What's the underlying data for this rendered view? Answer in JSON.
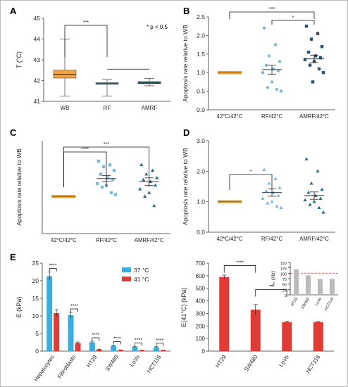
{
  "figure": {
    "panels": {
      "A": {
        "letter": "A",
        "note": "* p < 0.5"
      },
      "B": {
        "letter": "B"
      },
      "C": {
        "letter": "C"
      },
      "D": {
        "letter": "D"
      },
      "E": {
        "letter": "E"
      }
    }
  },
  "colors": {
    "orange": "#e8a030",
    "wb_fill": "#f0a448",
    "blue_light": "#80b6da",
    "blue_dark": "#2c5272",
    "teal": "#2b6b80",
    "bar_blue": "#3aaee0",
    "bar_red": "#e23a35",
    "gray_bar": "#bbbbbb",
    "ref_line": "#e05050",
    "axis": "#333333"
  },
  "chart_data": [
    {
      "panel": "A",
      "type": "box",
      "ylabel": "T (°C)",
      "ylim": [
        41,
        45
      ],
      "yticks": [
        41,
        42,
        43,
        44,
        45
      ],
      "categories": [
        "WB",
        "RF",
        "AMRF"
      ],
      "boxes": [
        {
          "name": "WB",
          "whisker_low": 41.25,
          "q1": 42.12,
          "median": 42.3,
          "q3": 42.5,
          "whisker_high": 44.0,
          "color": "#f0a448"
        },
        {
          "name": "RF",
          "whisker_low": 41.25,
          "q1": 41.82,
          "median": 41.85,
          "q3": 41.9,
          "whisker_high": 42.05,
          "color": "#7bb6d6"
        },
        {
          "name": "AMRF",
          "whisker_low": 41.75,
          "q1": 41.85,
          "median": 41.88,
          "q3": 41.95,
          "whisker_high": 42.1,
          "color": "#2b6b80"
        }
      ],
      "significance": [
        {
          "from": "WB",
          "to": "RF",
          "label": "***"
        }
      ],
      "bracket": {
        "from": "RF",
        "to": "AMRF"
      }
    },
    {
      "panel": "B",
      "type": "scatter",
      "ylabel": "Apoptosis rate relative to WB",
      "ylim": [
        0,
        2.5
      ],
      "yticks": [
        "0.0",
        "0.5",
        "1.0",
        "1.5",
        "2.0",
        "2.5"
      ],
      "categories": [
        "42°C/42°C",
        "RF/42°C",
        "AMRF/42°C"
      ],
      "groups": [
        {
          "name": "42°C/42°C",
          "mean": 1.0,
          "sem": 0.02,
          "points": [],
          "marker": "bar",
          "color": "#e8a030"
        },
        {
          "name": "RF/42°C",
          "mean": 1.08,
          "sem": 0.12,
          "points": [
            2.2,
            1.75,
            1.45,
            1.3,
            1.2,
            1.1,
            1.05,
            1.0,
            0.75,
            0.6,
            0.55,
            0.5
          ],
          "marker": "circle",
          "color": "#80b6da"
        },
        {
          "name": "AMRF/42°C",
          "mean": 1.37,
          "sem": 0.1,
          "points": [
            2.25,
            2.05,
            1.9,
            1.7,
            1.55,
            1.45,
            1.4,
            1.35,
            1.3,
            1.2,
            1.1,
            1.0,
            0.75
          ],
          "marker": "square",
          "color": "#2c5272"
        }
      ],
      "significance": [
        {
          "from": "42°C/42°C",
          "to": "AMRF/42°C",
          "label": "***"
        },
        {
          "from": "RF/42°C",
          "to": "AMRF/42°C",
          "label": "*"
        }
      ]
    },
    {
      "panel": "C",
      "type": "scatter",
      "ylabel": "Apoptosis rate relative to WB",
      "ylim": [
        0,
        2.5
      ],
      "yticks": [],
      "categories": [
        "42*C/42°C",
        "RF/42°C",
        "AMRF/42°C"
      ],
      "groups": [
        {
          "name": "42*C/42°C",
          "mean": 1.0,
          "sem": 0.02,
          "points": [],
          "marker": "bar",
          "color": "#e8a030"
        },
        {
          "name": "RF/42°C",
          "mean": 1.48,
          "sem": 0.08,
          "points": [
            1.95,
            1.85,
            1.8,
            1.7,
            1.6,
            1.5,
            1.45,
            1.35,
            1.3,
            1.25,
            1.1,
            1.05
          ],
          "marker": "square",
          "color": "#80b6da"
        },
        {
          "name": "AMRF/42°C",
          "mean": 1.4,
          "sem": 0.1,
          "points": [
            1.85,
            1.7,
            1.6,
            1.5,
            1.45,
            1.4,
            1.3,
            1.2,
            1.1,
            1.0,
            0.75
          ],
          "marker": "triangle",
          "color": "#2b6b80"
        }
      ],
      "significance": [
        {
          "from": "42*C/42°C",
          "to": "RF/42°C",
          "label": "****"
        },
        {
          "from": "42*C/42°C",
          "to": "AMRF/42°C",
          "label": "***"
        }
      ]
    },
    {
      "panel": "D",
      "type": "scatter",
      "ylabel": "Apoptosis rate relative to WB",
      "ylim": [
        0,
        3.0
      ],
      "yticks": [
        "0.0",
        "1.0",
        "2.0",
        "3.0"
      ],
      "categories": [
        "42*C/42°C",
        "RF/42°C",
        "AMRF/42°C"
      ],
      "groups": [
        {
          "name": "42*C/42°C",
          "mean": 1.0,
          "sem": 0.02,
          "points": [],
          "marker": "bar",
          "color": "#e8a030"
        },
        {
          "name": "RF/42°C",
          "mean": 1.3,
          "sem": 0.12,
          "points": [
            2.05,
            1.75,
            1.6,
            1.45,
            1.35,
            1.3,
            1.2,
            1.1,
            1.0,
            0.95,
            0.85,
            0.8
          ],
          "marker": "triangle",
          "color": "#80b6da"
        },
        {
          "name": "AMRF/42°C",
          "mean": 1.2,
          "sem": 0.12,
          "points": [
            2.4,
            2.0,
            1.6,
            1.4,
            1.3,
            1.2,
            1.1,
            1.05,
            1.0,
            0.9,
            0.8,
            0.65
          ],
          "marker": "triangle",
          "color": "#2b6b80"
        }
      ],
      "significance": [
        {
          "from": "42*C/42°C",
          "to": "RF/42°C",
          "label": "*"
        }
      ]
    },
    {
      "panel": "E-left",
      "type": "bar",
      "ylabel": "E (kPa)",
      "ylim": [
        0,
        25
      ],
      "yticks": [
        0,
        5,
        10,
        15,
        20,
        25
      ],
      "categories": [
        "Hepatocytes",
        "Fibroblasts",
        "HT29",
        "SW480",
        "LoVo",
        "HCT116"
      ],
      "series": [
        {
          "name": "37 °C",
          "color": "#3aaee0",
          "values": [
            21.3,
            10.2,
            2.5,
            1.5,
            1.2,
            1.1
          ],
          "errors": [
            1.2,
            0.8,
            0.3,
            0.2,
            0.15,
            0.15
          ]
        },
        {
          "name": "41 °C",
          "color": "#e23a35",
          "values": [
            10.8,
            2.3,
            0.45,
            0.3,
            0.2,
            0.2
          ],
          "errors": [
            1.0,
            0.3,
            0.1,
            0.05,
            0.05,
            0.05
          ]
        }
      ],
      "significance_label": "****"
    },
    {
      "panel": "E-right",
      "type": "bar",
      "ylabel": "E(41°C) (kPa)",
      "ylim": [
        0,
        700
      ],
      "yticks": [
        0,
        100,
        200,
        300,
        400,
        500,
        600,
        700
      ],
      "categories": [
        "HT29",
        "SW480",
        "LoVo",
        "HCT116"
      ],
      "values": [
        590,
        330,
        230,
        230
      ],
      "errors": [
        15,
        40,
        8,
        8
      ],
      "color": "#e23a35",
      "significance": [
        {
          "from": "HT29",
          "to": "SW480",
          "label": "****"
        },
        {
          "from": "SW480",
          "to": "LoVo",
          "label": "**"
        }
      ]
    },
    {
      "panel": "E-inset",
      "type": "bar",
      "ylabel": "fₜₕ (Hz)",
      "ylim": [
        0,
        150
      ],
      "yticks": [
        0,
        25,
        50,
        75,
        100,
        125,
        150
      ],
      "categories": [
        "HT29",
        "SW480",
        "LoVo",
        "HCT116"
      ],
      "values": [
        118,
        90,
        74,
        74
      ],
      "color": "#bbbbbb",
      "reference_line": 100
    }
  ]
}
